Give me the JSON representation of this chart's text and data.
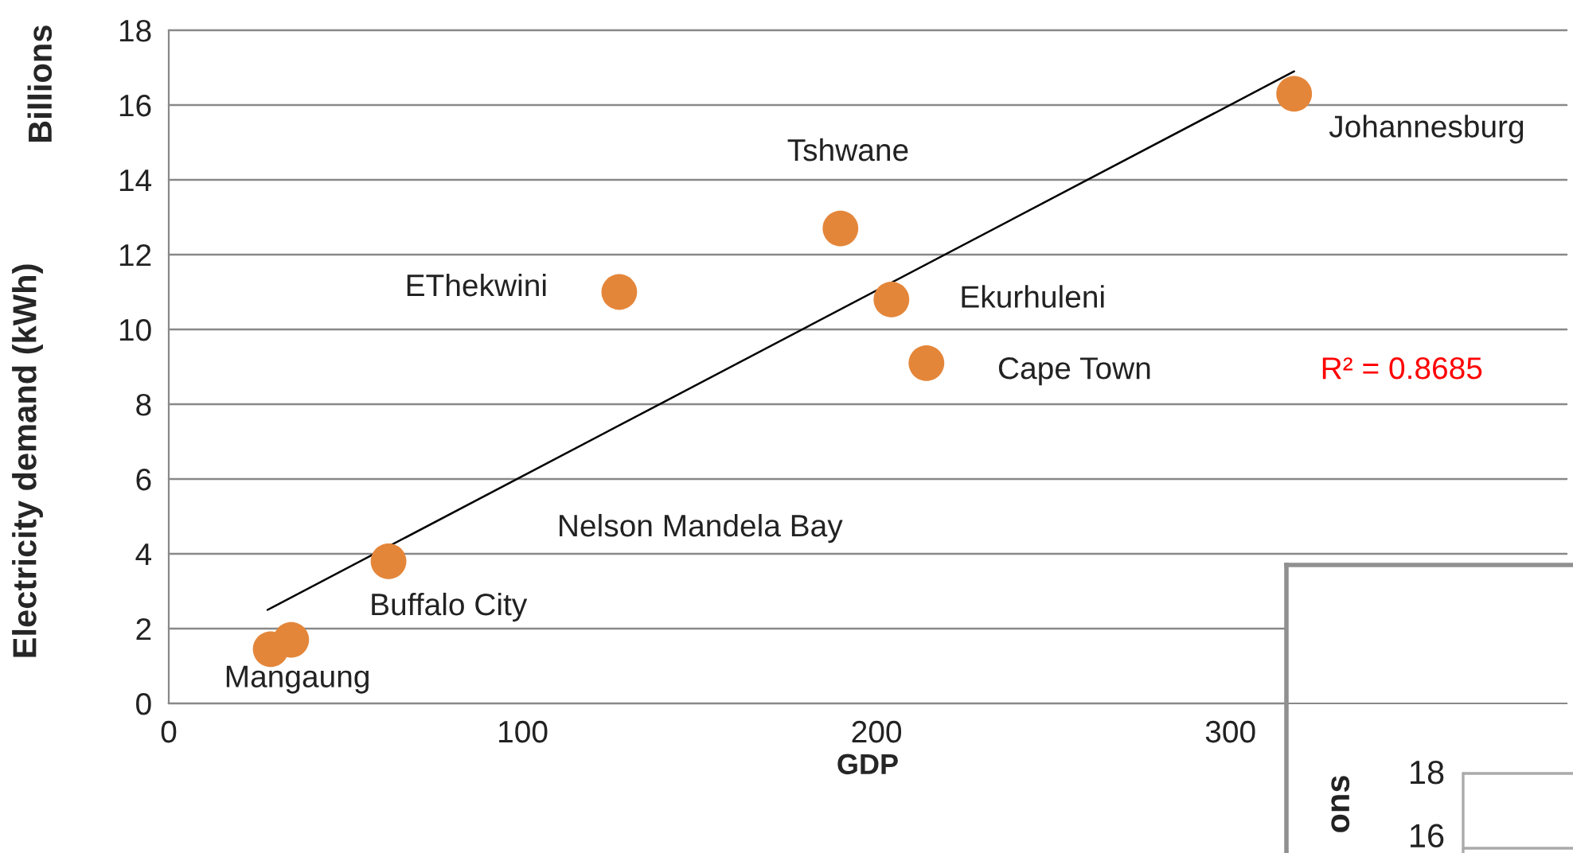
{
  "chart_data": [
    {
      "type": "scatter",
      "xlabel": "GDP",
      "ylabel": "Electricity demand (kWh)",
      "y2label": "Billions",
      "xlim": [
        0,
        395
      ],
      "xticks": [
        0,
        100,
        200,
        300
      ],
      "ylim": [
        0,
        18
      ],
      "yticks": [
        0,
        2,
        4,
        6,
        8,
        10,
        12,
        14,
        16,
        18
      ],
      "grid": "y",
      "legend": false,
      "x": [
        28.8,
        34.6,
        62.1,
        127.3,
        189.8,
        204.2,
        214.1,
        318
      ],
      "series": [
        {
          "color": "#e4863a",
          "marker": "circle",
          "values": [
            1.45,
            1.7,
            3.8,
            11.0,
            12.7,
            10.8,
            9.1,
            16.3
          ]
        },
        {
          "type": "line",
          "color": "#000000",
          "x": [
            27.9,
            318
          ],
          "values": [
            2.5,
            16.9
          ]
        }
      ],
      "annotations": [
        "Mangaung",
        "Buffalo City",
        "Nelson Mandela Bay",
        "EThekwini",
        "Tshwane",
        "Ekurhuleni",
        "Cape Town",
        "Johannesburg",
        "R² = 0.8685"
      ]
    },
    {
      "type": "other",
      "annotations": [
        "ons",
        "18",
        "16"
      ]
    }
  ]
}
